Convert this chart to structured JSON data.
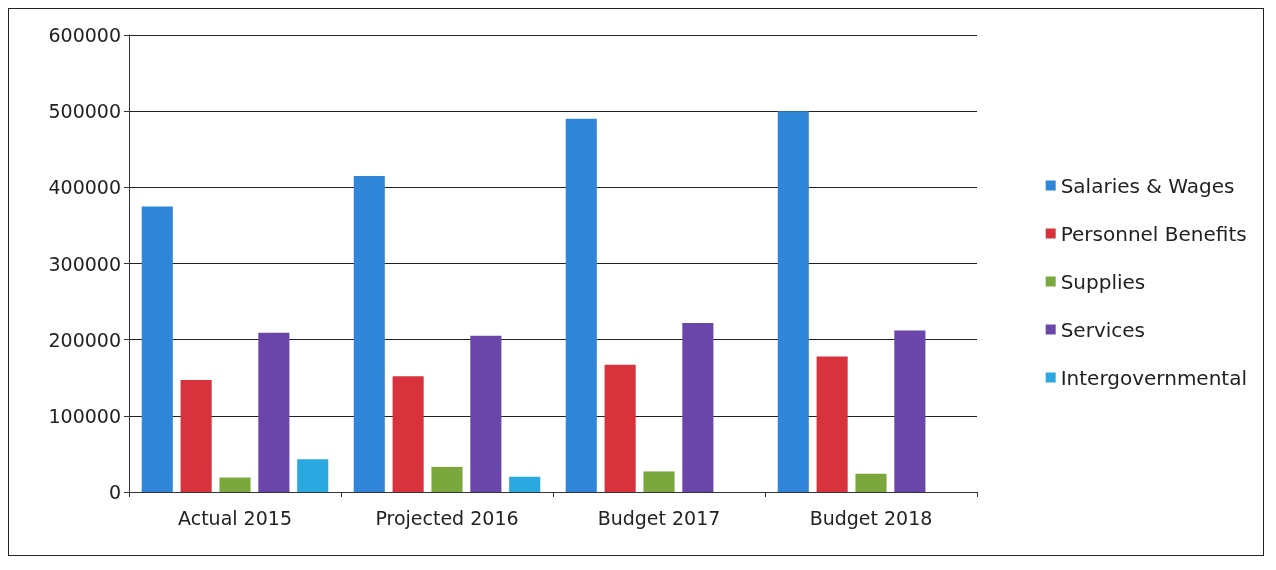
{
  "chart_data": {
    "type": "bar",
    "categories": [
      "Actual 2015",
      "Projected 2016",
      "Budget 2017",
      "Budget 2018"
    ],
    "series": [
      {
        "name": "Salaries & Wages",
        "color": "#2f86d8",
        "values": [
          375000,
          415000,
          490000,
          500000
        ]
      },
      {
        "name": "Personnel Benefits",
        "color": "#d8323c",
        "values": [
          147000,
          152000,
          167000,
          178000
        ]
      },
      {
        "name": "Supplies",
        "color": "#7aa83c",
        "values": [
          19000,
          33000,
          27000,
          24000
        ]
      },
      {
        "name": "Services",
        "color": "#6a46aa",
        "values": [
          209000,
          205000,
          222000,
          212000
        ]
      },
      {
        "name": "Intergovernmental",
        "color": "#2aa8e0",
        "values": [
          43000,
          20000,
          null,
          null
        ]
      }
    ],
    "ylim": [
      0,
      600000
    ],
    "yticks": [
      0,
      100000,
      200000,
      300000,
      400000,
      500000,
      600000
    ],
    "grid": "y",
    "legend": "right"
  }
}
